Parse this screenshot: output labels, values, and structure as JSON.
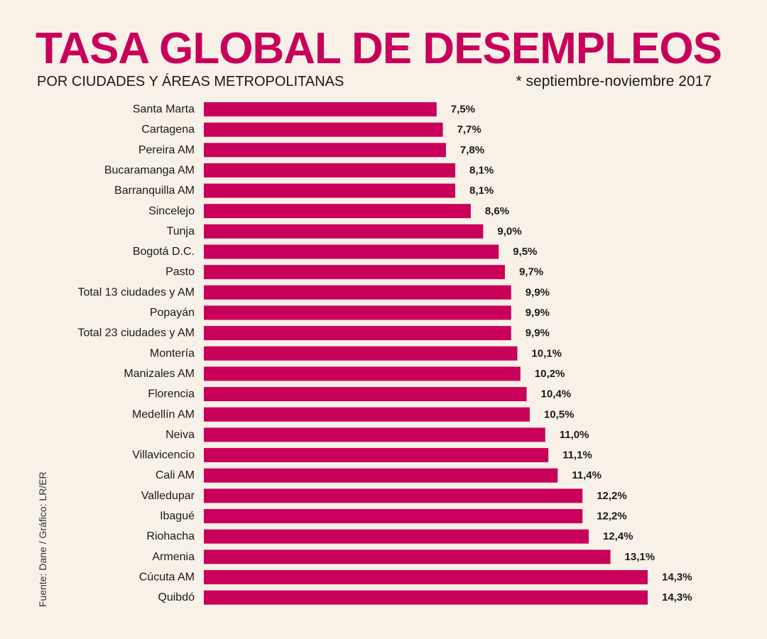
{
  "chart_data": {
    "type": "bar",
    "orientation": "horizontal",
    "title": "TASA GLOBAL DE DESEMPLEOS",
    "subtitle": "POR CIUDADES Y ÁREAS METROPOLITANAS",
    "note": "* septiembre-noviembre 2017",
    "source": "Fuente: Dane / Gráfico: LR/ER",
    "bar_color": "#c8005a",
    "categories": [
      "Santa Marta",
      "Cartagena",
      "Pereira AM",
      "Bucaramanga AM",
      "Barranquilla AM",
      "Sincelejo",
      "Tunja",
      "Bogotá D.C.",
      "Pasto",
      "Total 13 ciudades y AM",
      "Popayán",
      "Total 23 ciudades y AM",
      "Montería",
      "Manizales AM",
      "Florencia",
      "Medellín AM",
      "Neiva",
      "Villavicencio",
      "Cali AM",
      "Valledupar",
      "Ibagué",
      "Riohacha",
      "Armenia",
      "Cúcuta AM",
      "Quibdó"
    ],
    "values": [
      7.5,
      7.7,
      7.8,
      8.1,
      8.1,
      8.6,
      9.0,
      9.5,
      9.7,
      9.9,
      9.9,
      9.9,
      10.1,
      10.2,
      10.4,
      10.5,
      11.0,
      11.1,
      11.4,
      12.2,
      12.2,
      12.4,
      13.1,
      14.3,
      14.3
    ],
    "labels": [
      "7,5%",
      "7,7%",
      "7,8%",
      "8,1%",
      "8,1%",
      "8,6%",
      "9,0%",
      "9,5%",
      "9,7%",
      "9,9%",
      "9,9%",
      "9,9%",
      "10,1%",
      "10,2%",
      "10,4%",
      "10,5%",
      "11,0%",
      "11,1%",
      "11,4%",
      "12,2%",
      "12,2%",
      "12,4%",
      "13,1%",
      "14,3%",
      "14,3%"
    ],
    "xlabel": "",
    "ylabel": "",
    "xlim": [
      0,
      14.3
    ],
    "grid": false,
    "legend": false
  }
}
